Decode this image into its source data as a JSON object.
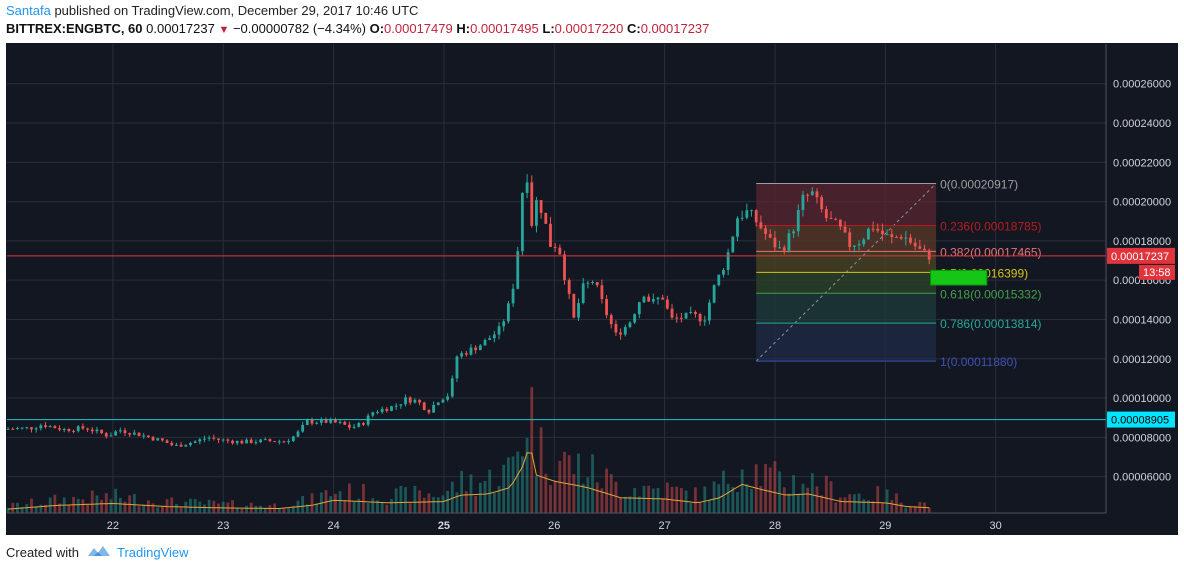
{
  "header": {
    "author": "Santafa",
    "published_text": " published on TradingView.com, December 29, 2017 10:46 UTC",
    "symbol": "BITTREX:ENGBTC, 60",
    "last": "0.00017237",
    "change": "−0.00000782 (−4.34%)",
    "o_label": "O:",
    "o_value": "0.00017479",
    "h_label": "H:",
    "h_value": "0.00017495",
    "l_label": "L:",
    "l_value": "0.00017220",
    "c_label": "C:",
    "c_value": "0.00017237"
  },
  "footer": {
    "created_with": "Created with",
    "brand": "TradingView"
  },
  "chart_data": {
    "type": "candlestick",
    "ylim": [
      4.15e-05,
      0.0002802
    ],
    "x_ticks": [
      {
        "label": "22",
        "t": 22.0
      },
      {
        "label": "23",
        "t": 23.0
      },
      {
        "label": "24",
        "t": 24.0
      },
      {
        "label": "25",
        "t": 25.0,
        "bold": true
      },
      {
        "label": "26",
        "t": 26.0
      },
      {
        "label": "27",
        "t": 27.0
      },
      {
        "label": "28",
        "t": 28.0
      },
      {
        "label": "29",
        "t": 29.0
      },
      {
        "label": "30",
        "t": 30.0
      }
    ],
    "x_range": [
      21.04,
      31.0
    ],
    "y_ticks": [
      "0.00006000",
      "0.00008000",
      "0.00010000",
      "0.00012000",
      "0.00014000",
      "0.00016000",
      "0.00018000",
      "0.00020000",
      "0.00022000",
      "0.00024000",
      "0.00026000"
    ],
    "price_path": [
      [
        21.04,
        8.42e-05
      ],
      [
        21.3,
        8.48e-05
      ],
      [
        21.4,
        8.65e-05
      ],
      [
        21.6,
        8.4e-05
      ],
      [
        21.8,
        8.48e-05
      ],
      [
        22.0,
        8.08e-05
      ],
      [
        22.1,
        8.38e-05
      ],
      [
        22.3,
        8.12e-05
      ],
      [
        22.5,
        7.8e-05
      ],
      [
        22.6,
        7.55e-05
      ],
      [
        22.8,
        7.8e-05
      ],
      [
        22.9,
        8e-05
      ],
      [
        23.0,
        7.88e-05
      ],
      [
        23.2,
        7.76e-05
      ],
      [
        23.4,
        7.82e-05
      ],
      [
        23.6,
        7.8e-05
      ],
      [
        23.7,
        8.1e-05
      ],
      [
        23.8,
        8.8e-05
      ],
      [
        24.0,
        8.8e-05
      ],
      [
        24.1,
        8.7e-05
      ],
      [
        24.2,
        8.5e-05
      ],
      [
        24.3,
        8.68e-05
      ],
      [
        24.4,
        9.3e-05
      ],
      [
        24.6,
        9.6e-05
      ],
      [
        24.7,
        9.95e-05
      ],
      [
        24.8,
        9.85e-05
      ],
      [
        24.9,
        9.35e-05
      ],
      [
        25.0,
        9.95e-05
      ],
      [
        25.1,
        0.000102
      ],
      [
        25.15,
        0.000121
      ],
      [
        25.3,
        0.000125
      ],
      [
        25.4,
        0.000128
      ],
      [
        25.55,
        0.000135
      ],
      [
        25.62,
        0.000145
      ],
      [
        25.68,
        0.00016
      ],
      [
        25.72,
        0.00018
      ],
      [
        25.78,
        0.000225
      ],
      [
        25.83,
        0.000187
      ],
      [
        25.88,
        0.0002
      ],
      [
        25.94,
        0.000195
      ],
      [
        26.0,
        0.000178
      ],
      [
        26.08,
        0.000178
      ],
      [
        26.15,
        0.000158
      ],
      [
        26.22,
        0.00014
      ],
      [
        26.3,
        0.000156
      ],
      [
        26.4,
        0.00016
      ],
      [
        26.5,
        0.000145
      ],
      [
        26.6,
        0.000132
      ],
      [
        26.72,
        0.000138
      ],
      [
        26.85,
        0.000154
      ],
      [
        26.92,
        0.000148
      ],
      [
        27.02,
        0.000152
      ],
      [
        27.1,
        0.00014
      ],
      [
        27.2,
        0.000141
      ],
      [
        27.3,
        0.000142
      ],
      [
        27.4,
        0.00014
      ],
      [
        27.5,
        0.000158
      ],
      [
        27.6,
        0.00017
      ],
      [
        27.7,
        0.000192
      ],
      [
        27.8,
        0.000195
      ],
      [
        27.9,
        0.000188
      ],
      [
        28.0,
        0.00018
      ],
      [
        28.1,
        0.000175
      ],
      [
        28.2,
        0.000185
      ],
      [
        28.3,
        0.000202
      ],
      [
        28.38,
        0.000204
      ],
      [
        28.5,
        0.000192
      ],
      [
        28.62,
        0.000187
      ],
      [
        28.72,
        0.000178
      ],
      [
        28.82,
        0.00018
      ],
      [
        28.92,
        0.000188
      ],
      [
        29.0,
        0.000184
      ],
      [
        29.1,
        0.000181
      ],
      [
        29.2,
        0.000183
      ],
      [
        29.3,
        0.000178
      ],
      [
        29.38,
        0.000174
      ],
      [
        29.43,
        0.0001724
      ]
    ],
    "volume_path": [
      [
        21.04,
        6
      ],
      [
        21.5,
        12
      ],
      [
        22.0,
        15
      ],
      [
        22.5,
        10
      ],
      [
        23.0,
        8
      ],
      [
        23.5,
        7
      ],
      [
        23.8,
        12
      ],
      [
        24.0,
        20
      ],
      [
        24.5,
        16
      ],
      [
        25.0,
        18
      ],
      [
        25.15,
        28
      ],
      [
        25.4,
        30
      ],
      [
        25.6,
        40
      ],
      [
        25.72,
        75
      ],
      [
        25.78,
        110
      ],
      [
        25.83,
        60
      ],
      [
        26.0,
        50
      ],
      [
        26.3,
        40
      ],
      [
        26.6,
        24
      ],
      [
        27.0,
        22
      ],
      [
        27.3,
        16
      ],
      [
        27.5,
        24
      ],
      [
        27.7,
        45
      ],
      [
        27.9,
        36
      ],
      [
        28.1,
        28
      ],
      [
        28.3,
        30
      ],
      [
        28.6,
        18
      ],
      [
        29.0,
        16
      ],
      [
        29.2,
        10
      ],
      [
        29.43,
        8
      ]
    ],
    "fib": {
      "t_start": 27.83,
      "t_end": 29.46,
      "levels": [
        {
          "label": "0(0.00020917)",
          "value": 0.00020917,
          "color": "#9e9e9e"
        },
        {
          "label": "0.236(0.00018785)",
          "value": 0.00018785,
          "color": "#b71c1c"
        },
        {
          "label": "0.382(0.00017465)",
          "value": 0.00017465,
          "color": "#e57373"
        },
        {
          "label": "0.5(0.00016399)",
          "value": 0.00016399,
          "color": "#d4c51a"
        },
        {
          "label": "0.618(0.00015332)",
          "value": 0.00015332,
          "color": "#43a047"
        },
        {
          "label": "0.786(0.00013814)",
          "value": 0.00013814,
          "color": "#26a69a"
        },
        {
          "label": "1(0.00011880)",
          "value": 0.0001188,
          "color": "#3f51b5"
        }
      ],
      "bands": [
        "#5a2630",
        "#5b3a2a",
        "#4d4622",
        "#2d4628",
        "#1e3c3a",
        "#1f2b46"
      ]
    },
    "hlines": [
      {
        "value": 0.00017237,
        "color": "#e0343c",
        "label": "0.00017237",
        "sub_label": "13:58",
        "label_bg": "#e0343c",
        "label_color": "#ffffff"
      },
      {
        "value": 8.905e-05,
        "color": "#17c7d0",
        "label": "0.00008905",
        "label_bg": "#00e5ff",
        "label_color": "#000000"
      }
    ],
    "target_box": {
      "t_start": 29.41,
      "t_end": 29.92,
      "y_top": 0.000165,
      "y_bottom": 0.0001575,
      "color": "#16c616"
    },
    "colors": {
      "bg": "#131722",
      "grid": "#2a2e39",
      "up": "#26a69a",
      "down": "#ef5350",
      "axis_text": "#d1d4dc",
      "ma": "#e8a23a"
    }
  }
}
